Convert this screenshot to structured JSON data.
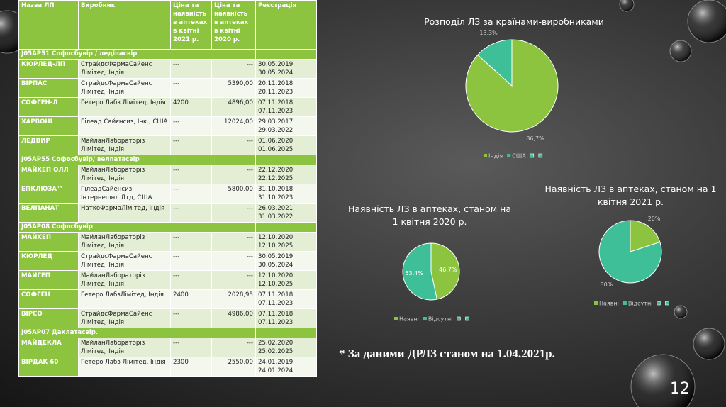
{
  "table": {
    "header": [
      "Назва ЛП",
      "Виробник",
      "Ціна та наявність в аптеках в квітні 2021 р.",
      "Ціна та наявність в аптеках в квітні 2020 р.",
      "Реєстрація"
    ],
    "rows": [
      {
        "group": "J05AP51 Софосбувір / ледіпасвір"
      },
      {
        "cells": [
          "КЮРЛЕД-ЛП",
          "СтрайдсФармаСайенс Лімітед, Індія",
          "---",
          "---",
          [
            "30.05.2019",
            "30.05.2024"
          ]
        ]
      },
      {
        "cells": [
          "ВІРПАС",
          "СтрайдсФармаСайенс Лімітед, Індія",
          "---",
          "5390,00",
          [
            "20.11.2018",
            "20.11.2023"
          ]
        ]
      },
      {
        "cells": [
          "СОФГЕН-Л",
          "Гетеро Лабз Лімітед, Індія",
          "4200",
          "4896,00",
          [
            "07.11.2018",
            "07.11.2023"
          ]
        ]
      },
      {
        "cells": [
          "ХАРВОНІ",
          "Гілеад Сайєнсиз, Інк., США",
          "---",
          "12024,00",
          [
            "29.03.2017",
            "29.03.2022"
          ]
        ]
      },
      {
        "cells": [
          "ЛЕДВИР",
          "МайланЛабораторіз Лімітед, Індія",
          "---",
          "---",
          [
            "01.06.2020",
            "01.06.2025"
          ]
        ]
      },
      {
        "group": "J05AP55 Софосбувір/ велпатасвір"
      },
      {
        "cells": [
          "МАЙХЕП ОЛЛ",
          "МайланЛабораторіз Лімітед, Індія",
          "---",
          "---",
          [
            "22.12.2020",
            "22.12.2025"
          ]
        ]
      },
      {
        "cells": [
          "ЕПКЛЮЗА™",
          "ГілеадСайенсиз Інтернешнл Лтд, США",
          "---",
          "5800,00",
          [
            "31.10.2018",
            "31.10.2023"
          ]
        ]
      },
      {
        "cells": [
          "ВЕЛПАНАТ",
          "НаткоФармаЛімітед, Індія",
          "---",
          "---",
          [
            "26.03.2021",
            "31.03.2022"
          ]
        ]
      },
      {
        "group": "J05AP08 Софосбувір"
      },
      {
        "cells": [
          "МАЙХЕП",
          "МайланЛабораторіз Лімітед, Індія",
          "---",
          "---",
          [
            "12.10.2020",
            "12.10.2025"
          ]
        ]
      },
      {
        "cells": [
          "КЮРЛЕД",
          "СтрайдсФармаСайенс Лімітед, Індія",
          "---",
          "---",
          [
            "30.05.2019",
            "30.05.2024"
          ]
        ]
      },
      {
        "cells": [
          "МАЙГЕП",
          "МайланЛабораторіз Лімітед, Індія",
          "---",
          "---",
          [
            "12.10.2020",
            "12.10.2025"
          ]
        ]
      },
      {
        "cells": [
          "СОФГЕН",
          "Гетеро ЛабзЛімітед, Індія",
          "2400",
          "2028,95",
          [
            "07.11.2018",
            "07.11.2023"
          ]
        ]
      },
      {
        "cells": [
          "ВІРСО",
          "СтрайдсФармаСайенс Лімітед, Індія",
          "---",
          "4986,00",
          [
            "07.11.2018",
            "07.11.2023"
          ]
        ]
      },
      {
        "group": "J05AP07 Даклатасвір."
      },
      {
        "cells": [
          "МАЙДЕКЛА",
          "МайланЛабораторіз Лімітед, Індія",
          "---",
          "---",
          [
            "25.02.2020",
            "25.02.2025"
          ]
        ]
      },
      {
        "cells": [
          "ВІРДАК 60",
          "Гетеро Лабз Лімітед, Індія",
          "2300",
          "2550,00",
          [
            "24.01.2019",
            "24.01.2024"
          ]
        ]
      }
    ]
  },
  "chart_data": [
    {
      "type": "pie",
      "title": "Розподіл ЛЗ за країнами-виробниками",
      "categories": [
        "Індія",
        "США"
      ],
      "values": [
        86.7,
        13.3
      ],
      "value_labels": [
        "86,7%",
        "13,3%"
      ],
      "colors": [
        "#8cc43f",
        "#3fbf98"
      ]
    },
    {
      "type": "pie",
      "title": "Наявність ЛЗ в аптеках, станом на 1 квітня 2020 р.",
      "categories": [
        "Наявні",
        "Відсутні"
      ],
      "values": [
        46.7,
        53.4
      ],
      "value_labels": [
        "46,7%",
        "53,4%"
      ],
      "colors": [
        "#8cc43f",
        "#3fbf98"
      ]
    },
    {
      "type": "pie",
      "title": "Наявність ЛЗ в аптеках, станом на 1 квітня 2021 р.",
      "categories": [
        "Наявні",
        "Відсутні"
      ],
      "values": [
        20,
        80
      ],
      "value_labels": [
        "20%",
        "80%"
      ],
      "colors": [
        "#8cc43f",
        "#3fbf98"
      ]
    }
  ],
  "footnote": "* За даними ДРЛЗ станом на 1.04.2021р.",
  "page_number": "12"
}
